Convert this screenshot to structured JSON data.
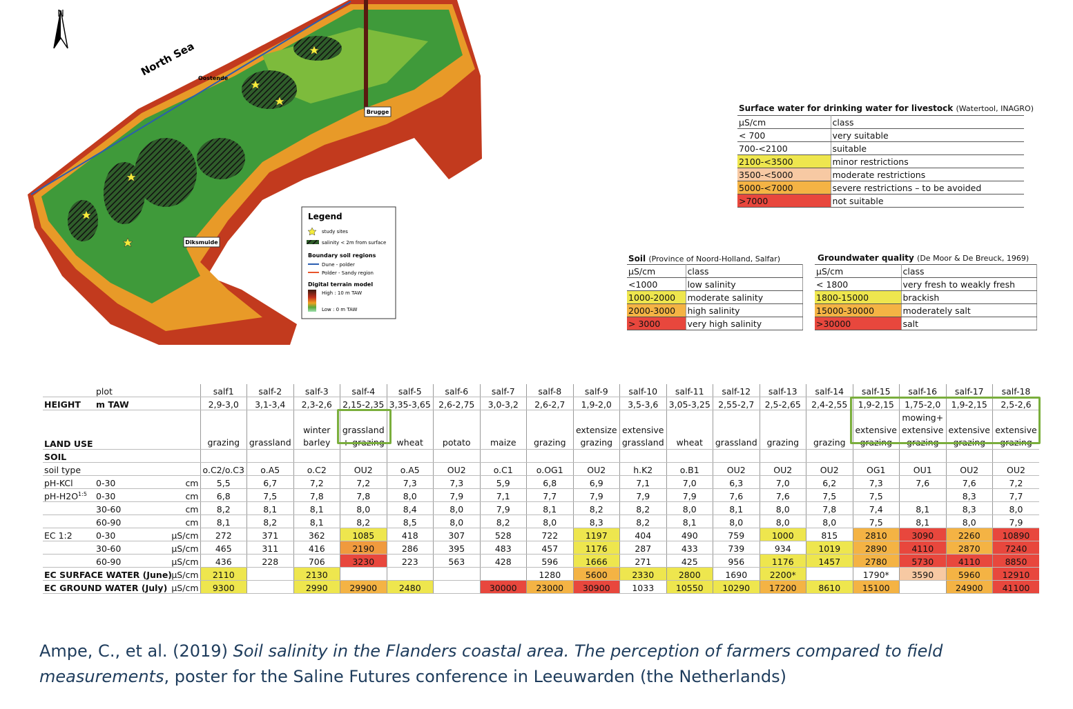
{
  "map": {
    "north": "N",
    "sea": "North Sea",
    "towns": [
      "Oostende",
      "Brugge",
      "Diksmuide"
    ],
    "legend": {
      "title": "Legend",
      "study_sites": "study sites",
      "salinity": "salinity < 2m from surface",
      "boundary": "Boundary soil regions",
      "dune": "Dune - polder",
      "polder": "Polder - Sandy region",
      "dtm": "Digital terrain model",
      "high": "High : 10 m TAW",
      "low": "Low : 0 m TAW"
    }
  },
  "surface_table": {
    "title": "Surface water for drinking water for livestock",
    "source": "(Watertool, INAGRO)",
    "header": [
      "µS/cm",
      "class"
    ],
    "rows": [
      [
        "< 700",
        "very suitable"
      ],
      [
        "700-<2100",
        "suitable"
      ],
      [
        "2100-<3500",
        "minor restrictions"
      ],
      [
        "3500-<5000",
        "moderate restrictions"
      ],
      [
        "5000-<7000",
        "severe restrictions – to be avoided"
      ],
      [
        ">7000",
        "not suitable"
      ]
    ],
    "fills": [
      null,
      null,
      "#eee64e",
      "#f7c9a3",
      "#f4b344",
      "#e8473d"
    ]
  },
  "soil_table": {
    "title": "Soil",
    "source": "(Province of Noord-Holland, Salfar)",
    "header": [
      "µS/cm",
      "class"
    ],
    "rows": [
      [
        "<1000",
        "low salinity"
      ],
      [
        "1000-2000",
        "moderate salinity"
      ],
      [
        "2000-3000",
        "high salinity"
      ],
      [
        "> 3000",
        "very high salinity"
      ]
    ],
    "fills": [
      null,
      "#eee64e",
      "#f4b344",
      "#e8473d"
    ]
  },
  "groundwater_table": {
    "title": "Groundwater quality",
    "source": "(De Moor & De Breuck, 1969)",
    "header": [
      "µS/cm",
      "class"
    ],
    "rows": [
      [
        "< 1800",
        "very fresh to weakly fresh"
      ],
      [
        "1800-15000",
        "brackish"
      ],
      [
        "15000-30000",
        "moderately salt"
      ],
      [
        ">30000",
        "salt"
      ]
    ],
    "fills": [
      null,
      "#eee64e",
      "#f4b344",
      "#e8473d"
    ]
  },
  "main_table": {
    "plot_label": "plot",
    "plots": [
      "salf1",
      "salf-2",
      "salf-3",
      "salf-4",
      "salf-5",
      "salf-6",
      "salf-7",
      "salf-8",
      "salf-9",
      "salf-10",
      "salf-11",
      "salf-12",
      "salf-13",
      "salf-14",
      "salf-15",
      "salf-16",
      "salf-17",
      "salf-18"
    ],
    "rows": [
      {
        "label": "HEIGHT",
        "sub": "m TAW",
        "bold": true,
        "values": [
          "2,9-3,0",
          "3,1-3,4",
          "2,3-2,6",
          "2,15-2,35",
          "3,35-3,65",
          "2,6-2,75",
          "3,0-3,2",
          "2,6-2,7",
          "1,9-2,0",
          "3,5-3,6",
          "3,05-3,25",
          "2,55-2,7",
          "2,5-2,65",
          "2,4-2,55",
          "1,9-2,15",
          "1,75-2,0",
          "1,9-2,15",
          "2,5-2,6"
        ]
      },
      {
        "label": "LAND USE",
        "bold": true,
        "tall": true,
        "values": [
          "grazing",
          "grassland",
          "winter barley",
          "grassland + grazing",
          "wheat",
          "potato",
          "maize",
          "grazing",
          "extensize grazing",
          "extensive grassland",
          "wheat",
          "grassland",
          "grazing",
          "grazing",
          "extensive grazing",
          "mowing+ extensive grazing",
          "extensive grazing",
          "extensive grazing"
        ]
      },
      {
        "label": "SOIL",
        "bold": true
      },
      {
        "label": "soil type",
        "values": [
          "o.C2/o.C3",
          "o.A5",
          "o.C2",
          "OU2",
          "o.A5",
          "OU2",
          "o.C1",
          "o.OG1",
          "OU2",
          "h.K2",
          "o.B1",
          "OU2",
          "OU2",
          "OU2",
          "OG1",
          "OU1",
          "OU2",
          "OU2"
        ]
      },
      {
        "label": "pH-KCl",
        "sub": "0-30",
        "unit": "cm",
        "values": [
          "5,5",
          "6,7",
          "7,2",
          "7,2",
          "7,3",
          "7,3",
          "5,9",
          "6,8",
          "6,9",
          "7,1",
          "7,0",
          "6,3",
          "7,0",
          "6,2",
          "7,3",
          "7,6",
          "7,6",
          "7,2"
        ]
      },
      {
        "label": "pH-H2O",
        "sup": "1:5",
        "sub": "0-30",
        "unit": "cm",
        "values": [
          "6,8",
          "7,5",
          "7,8",
          "7,8",
          "8,0",
          "7,9",
          "7,1",
          "7,7",
          "7,9",
          "7,9",
          "7,9",
          "7,6",
          "7,6",
          "7,5",
          "7,5",
          null,
          "8,3",
          "7,7"
        ]
      },
      {
        "sub": "30-60",
        "unit": "cm",
        "values": [
          "8,2",
          "8,1",
          "8,1",
          "8,0",
          "8,4",
          "8,0",
          "7,9",
          "8,1",
          "8,2",
          "8,2",
          "8,0",
          "8,1",
          "8,0",
          "7,8",
          "7,4",
          "8,1",
          "8,3",
          "8,0"
        ]
      },
      {
        "sub": "60-90",
        "unit": "cm",
        "values": [
          "8,1",
          "8,2",
          "8,1",
          "8,2",
          "8,5",
          "8,0",
          "8,2",
          "8,0",
          "8,3",
          "8,2",
          "8,1",
          "8,0",
          "8,0",
          "8,0",
          "7,5",
          "8,1",
          "8,0",
          "7,9"
        ]
      },
      {
        "label": "EC 1:2",
        "sub": "0-30",
        "unit": "µS/cm",
        "values": [
          272,
          371,
          362,
          1085,
          418,
          307,
          528,
          722,
          1197,
          404,
          490,
          759,
          1000,
          815,
          2810,
          3090,
          2260,
          10890
        ],
        "fills": [
          null,
          null,
          null,
          "#eee64e",
          null,
          null,
          null,
          null,
          "#eee64e",
          null,
          null,
          null,
          "#eee64e",
          null,
          "#f4b344",
          "#e8473d",
          "#f4b344",
          "#e8473d"
        ]
      },
      {
        "sub": "30-60",
        "unit": "µS/cm",
        "values": [
          465,
          311,
          416,
          2190,
          286,
          395,
          483,
          457,
          1176,
          287,
          433,
          739,
          934,
          1019,
          2890,
          4110,
          2870,
          7240
        ],
        "fills": [
          null,
          null,
          null,
          "#f09a3e",
          null,
          null,
          null,
          null,
          "#eee64e",
          null,
          null,
          null,
          null,
          "#eee64e",
          "#f4b344",
          "#e8473d",
          "#f4b344",
          "#e8473d"
        ]
      },
      {
        "sub": "60-90",
        "unit": "µS/cm",
        "values": [
          436,
          228,
          706,
          3230,
          223,
          563,
          428,
          596,
          1666,
          271,
          425,
          956,
          1176,
          1457,
          2780,
          5730,
          4110,
          8850
        ],
        "fills": [
          null,
          null,
          null,
          "#e8473d",
          null,
          null,
          null,
          null,
          "#eee64e",
          null,
          null,
          null,
          "#eee64e",
          "#eee64e",
          "#f4b344",
          "#e8473d",
          "#e8473d",
          "#e8473d"
        ]
      },
      {
        "label": "EC SURFACE WATER (June)",
        "unit": "µS/cm",
        "bold": true,
        "values": [
          2110,
          null,
          2130,
          null,
          null,
          null,
          null,
          1280,
          5600,
          2330,
          2800,
          1690,
          "2200*",
          null,
          "1790*",
          3590,
          5960,
          12910
        ],
        "fills": [
          "#eee64e",
          null,
          "#eee64e",
          null,
          null,
          null,
          null,
          null,
          "#f4b344",
          "#eee64e",
          "#eee64e",
          null,
          "#eee64e",
          null,
          null,
          "#f7c9a3",
          "#f4b344",
          "#e8473d"
        ]
      },
      {
        "label": "EC GROUND WATER (July)",
        "unit": "µS/cm",
        "bold": true,
        "values": [
          9300,
          null,
          2990,
          29900,
          2480,
          null,
          30000,
          23000,
          30900,
          1033,
          10550,
          10290,
          17200,
          8610,
          15100,
          null,
          24900,
          41100
        ],
        "fills": [
          "#eee64e",
          null,
          "#eee64e",
          "#f4b344",
          "#eee64e",
          null,
          "#e8473d",
          "#f4b344",
          "#e8473d",
          null,
          "#eee64e",
          "#eee64e",
          "#f4b344",
          "#eee64e",
          "#f4b344",
          null,
          "#f4b344",
          "#e8473d"
        ]
      }
    ]
  },
  "citation": {
    "authors": "Ampe, C., et al. (2019)",
    "title": "Soil salinity in the Flanders coastal area. The perception of farmers compared to field measurements",
    "rest": ", poster for the Saline Futures conference in Leeuwarden (the Netherlands)"
  }
}
